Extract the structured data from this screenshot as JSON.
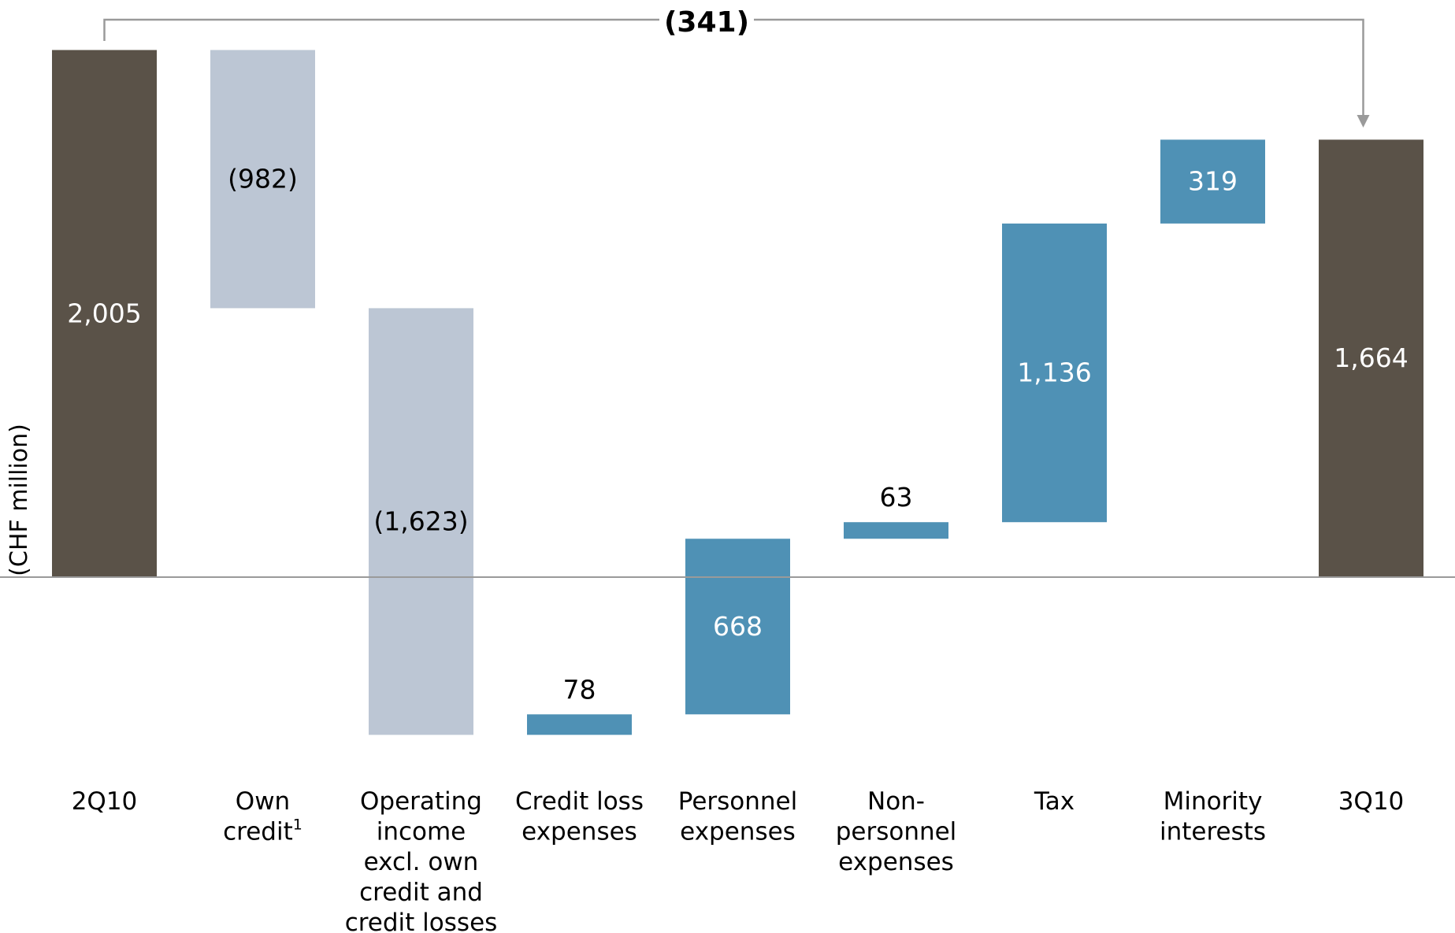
{
  "chart_data": {
    "type": "waterfall",
    "ylabel": "(CHF million)",
    "total_change_label": "(341)",
    "total_change": -341,
    "categories": [
      {
        "label": "2Q10",
        "value": 2005,
        "kind": "total",
        "value_label": "2,005"
      },
      {
        "label": "Own credit",
        "superscript": "1",
        "value": -982,
        "kind": "decrease",
        "value_label": "(982)"
      },
      {
        "label": "Operating income excl. own credit and credit losses",
        "value": -1623,
        "kind": "decrease",
        "value_label": "(1,623)"
      },
      {
        "label": "Credit loss expenses",
        "value": 78,
        "kind": "increase",
        "value_label": "78"
      },
      {
        "label": "Personnel expenses",
        "value": 668,
        "kind": "increase",
        "value_label": "668"
      },
      {
        "label": "Non-personnel expenses",
        "value": 63,
        "kind": "increase",
        "value_label": "63"
      },
      {
        "label": "Tax",
        "value": 1136,
        "kind": "increase",
        "value_label": "1,136"
      },
      {
        "label": "Minority interests",
        "value": 319,
        "kind": "increase",
        "value_label": "319"
      },
      {
        "label": "3Q10",
        "value": 1664,
        "kind": "total",
        "value_label": "1,664"
      }
    ],
    "category_lines": [
      [
        "2Q10"
      ],
      [
        "Own",
        "credit"
      ],
      [
        "Operating",
        "income",
        "excl. own",
        "credit and",
        "credit losses"
      ],
      [
        "Credit loss",
        "expenses"
      ],
      [
        "Personnel",
        "expenses"
      ],
      [
        "Non-",
        "personnel",
        "expenses"
      ],
      [
        "Tax"
      ],
      [
        "Minority",
        "interests"
      ],
      [
        "3Q10"
      ]
    ],
    "colors": {
      "total": "#5a5248",
      "decrease": "#bcc6d4",
      "increase": "#4f91b5",
      "axis": "#9a9a9a",
      "text_dark": "#000000",
      "text_light": "#ffffff"
    }
  }
}
